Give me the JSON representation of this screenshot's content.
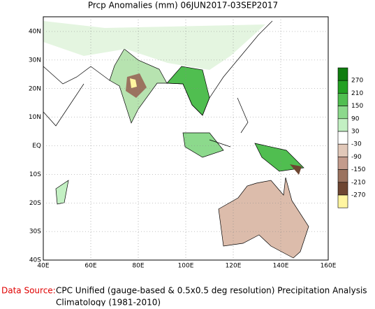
{
  "title": "Prcp Anomalies (mm) 06JUN2017-03SEP2017",
  "x_ticks": [
    "40E",
    "60E",
    "80E",
    "100E",
    "120E",
    "140E",
    "160E"
  ],
  "y_ticks": [
    "40N",
    "30N",
    "20N",
    "10N",
    "EQ",
    "10S",
    "20S",
    "30S",
    "40S"
  ],
  "colorbar": {
    "levels": [
      270,
      210,
      150,
      90,
      30,
      -30,
      -90,
      -150,
      -210,
      -270
    ],
    "colors": [
      "#0f7d0f",
      "#23a023",
      "#50be50",
      "#8cd98c",
      "#c3f0c3",
      "#ffffff",
      "#e1c8b9",
      "#c39b8c",
      "#9b735f",
      "#6e4632",
      "#fff5a0"
    ]
  },
  "source": {
    "label": "Data Source:",
    "line1": "CPC Unified (gauge-based & 0.5x0.5 deg resolution) Precipitation Analysis",
    "line2": "Climatology (1981-2010)"
  }
}
